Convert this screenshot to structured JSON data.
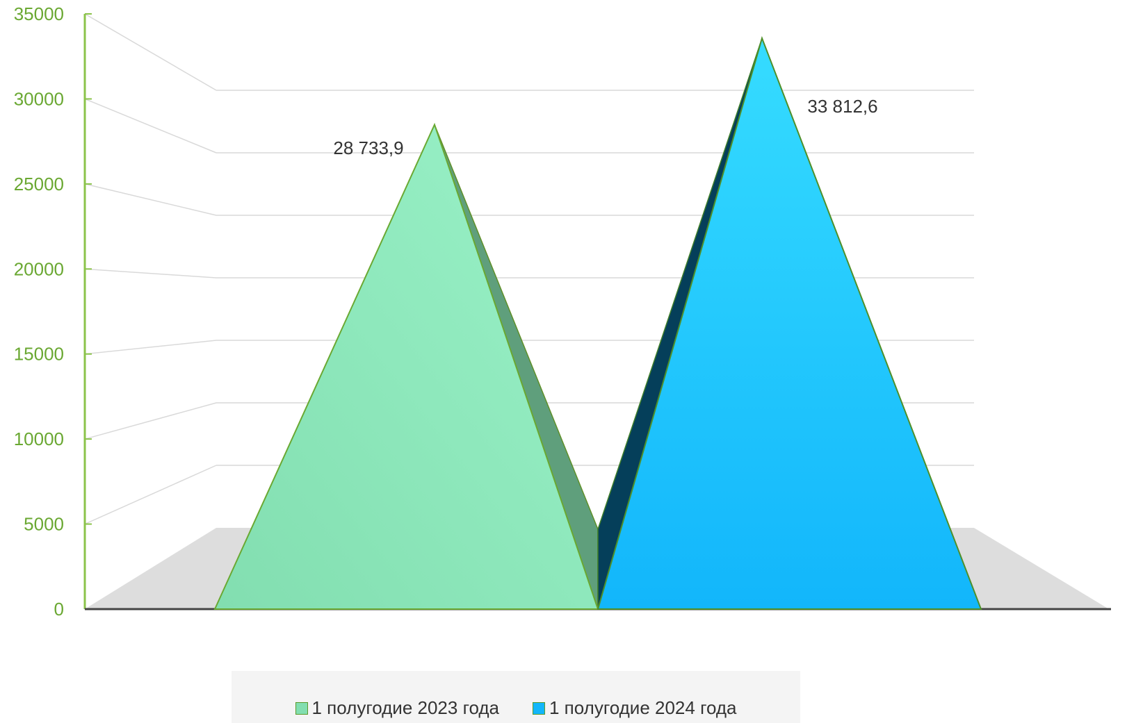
{
  "chart_data": {
    "type": "bar",
    "shape": "3d-pyramid",
    "categories": [
      ""
    ],
    "series": [
      {
        "name": "1 полугодие 2023 года",
        "value": 28733.9,
        "label": "28 733,9",
        "color": "#8ee8bd"
      },
      {
        "name": "1 полугодие 2024 года",
        "value": 33812.6,
        "label": "33 812,6",
        "color": "#22c6f8"
      }
    ],
    "y_ticks": [
      "0",
      "5000",
      "10000",
      "15000",
      "20000",
      "25000",
      "30000",
      "35000"
    ],
    "ylim": [
      0,
      35000
    ],
    "grid": true,
    "legend_position": "bottom",
    "colors": {
      "axis_text": "#6aa832",
      "axis_line": "#8bc34a",
      "gridline": "#d9d9d9",
      "floor": "#dddddd",
      "baseline": "#444444",
      "green_side": "#5f9f7c",
      "blue_side": "#053f5a"
    }
  }
}
